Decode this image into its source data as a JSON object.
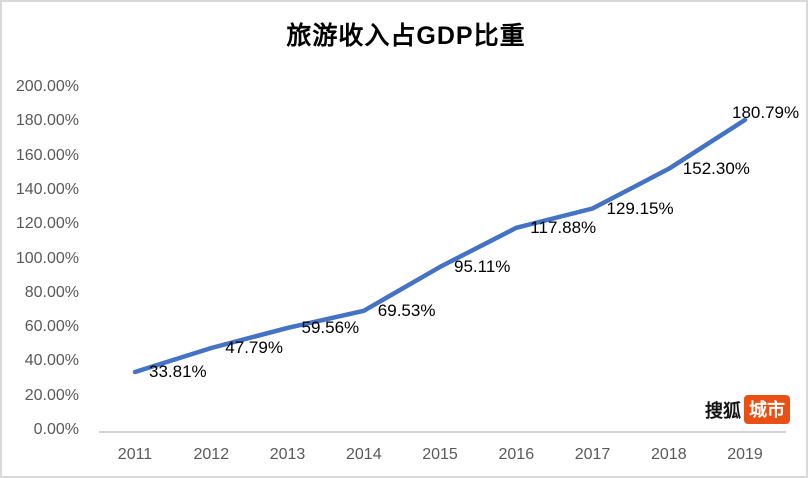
{
  "chart": {
    "title": "旅游收入占GDP比重"
  },
  "watermark": {
    "brand": "搜狐",
    "badge": "城市",
    "badge_color": "#e85113"
  },
  "chart_data": {
    "type": "line",
    "title": "旅游收入占GDP比重",
    "categories": [
      "2011",
      "2012",
      "2013",
      "2014",
      "2015",
      "2016",
      "2017",
      "2018",
      "2019"
    ],
    "values": [
      33.81,
      47.79,
      59.56,
      69.53,
      95.11,
      117.88,
      129.15,
      152.3,
      180.79
    ],
    "data_labels": [
      "33.81%",
      "47.79%",
      "59.56%",
      "69.53%",
      "95.11%",
      "117.88%",
      "129.15%",
      "152.30%",
      "180.79%"
    ],
    "y_ticks": [
      "200.00%",
      "180.00%",
      "160.00%",
      "140.00%",
      "120.00%",
      "100.00%",
      "80.00%",
      "60.00%",
      "40.00%",
      "20.00%",
      "0.00%"
    ],
    "xlabel": "",
    "ylabel": "",
    "ylim": [
      0,
      200
    ],
    "grid": false,
    "legend": "none",
    "line_color": "#4472c4",
    "axis_text_color": "#595959",
    "data_label_color": "#000000"
  }
}
